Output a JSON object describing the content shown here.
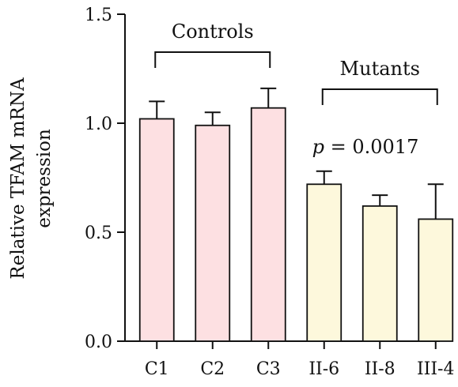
{
  "chart_data": {
    "type": "bar",
    "title": "",
    "xlabel": "",
    "ylabel_lines": [
      "Relative TFAM mRNA",
      "expression"
    ],
    "ylim": [
      0,
      1.5
    ],
    "yticks": [
      "0.0",
      "0.5",
      "1.0",
      "1.5"
    ],
    "categories": [
      "C1",
      "C2",
      "C3",
      "II-6",
      "II-8",
      "III-4"
    ],
    "values": [
      1.02,
      0.99,
      1.07,
      0.72,
      0.62,
      0.56
    ],
    "errors": [
      0.08,
      0.06,
      0.09,
      0.06,
      0.05,
      0.16
    ],
    "groups": [
      {
        "label": "Controls",
        "members": [
          0,
          1,
          2
        ],
        "color": "#fde0e2"
      },
      {
        "label": "Mutants",
        "members": [
          3,
          4,
          5
        ],
        "color": "#fdf8dc"
      }
    ],
    "annotation": {
      "italic": "p",
      "text": " = 0.0017"
    },
    "grid": false,
    "legend": "none"
  }
}
